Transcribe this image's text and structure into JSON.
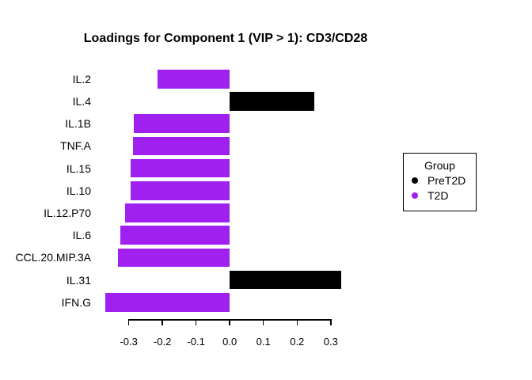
{
  "chart_data": {
    "type": "bar",
    "orientation": "horizontal",
    "title": "Loadings for Component 1 (VIP > 1): CD3/CD28",
    "categories": [
      "IL.2",
      "IL.4",
      "IL.1B",
      "TNF.A",
      "IL.15",
      "IL.10",
      "IL.12.P70",
      "IL.6",
      "CCL.20.MIP.3A",
      "IL.31",
      "IFN.G"
    ],
    "values": [
      -0.215,
      0.251,
      -0.285,
      -0.288,
      -0.295,
      -0.295,
      -0.311,
      -0.326,
      -0.333,
      0.332,
      -0.369
    ],
    "groups": [
      "T2D",
      "PreT2D",
      "T2D",
      "T2D",
      "T2D",
      "T2D",
      "T2D",
      "T2D",
      "T2D",
      "PreT2D",
      "T2D"
    ],
    "group_colors": {
      "PreT2D": "#000000",
      "T2D": "#A020F0"
    },
    "x_ticks": [
      -0.3,
      -0.2,
      -0.1,
      0.0,
      0.1,
      0.2,
      0.3
    ],
    "x_tick_labels": [
      "-0.3",
      "-0.2",
      "-0.1",
      "0.0",
      "0.1",
      "0.2",
      "0.3"
    ],
    "xlim": [
      -0.3,
      0.3
    ],
    "grid": false,
    "background": "#ffffff",
    "legend": {
      "title": "Group",
      "position": "right",
      "entries": [
        {
          "label": "PreT2D",
          "color": "#000000"
        },
        {
          "label": "T2D",
          "color": "#A020F0"
        }
      ]
    }
  }
}
